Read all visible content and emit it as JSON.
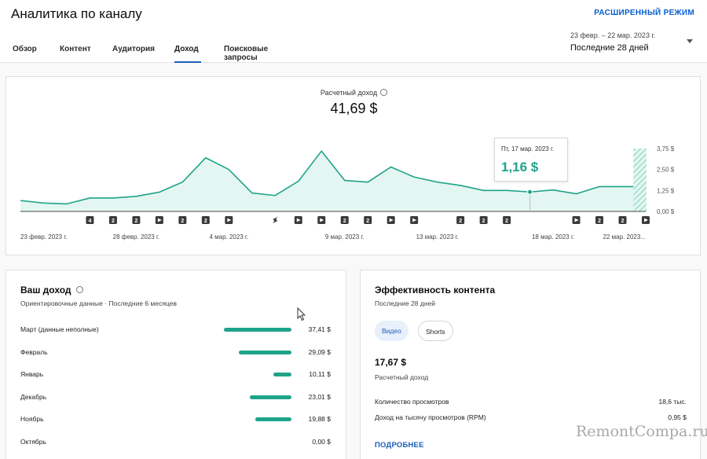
{
  "header": {
    "title": "Аналитика по каналу",
    "advanced_mode": "РАСШИРЕННЫЙ РЕЖИМ",
    "date_range_small": "23 февр. – 22 мар. 2023 г.",
    "date_range_label": "Последние 28 дней"
  },
  "tabs": [
    {
      "label": "Обзор",
      "active": false
    },
    {
      "label": "Контент",
      "active": false
    },
    {
      "label": "Аудитория",
      "active": false
    },
    {
      "label": "Доход",
      "active": true
    },
    {
      "label": "Поисковые запросы",
      "active": false
    }
  ],
  "metric": {
    "label": "Расчетный доход",
    "value": "41,69 $"
  },
  "tooltip": {
    "date": "Пт, 17 мар. 2023 г.",
    "value": "1,16 $"
  },
  "colors": {
    "accent": "#1fa38a",
    "area_fill": "#e4f6f1",
    "link": "#065fd4",
    "tab_underline": "#1a5fb4"
  },
  "chart_data": {
    "type": "area",
    "x": [
      "23 февр.",
      "24 февр.",
      "25 февр.",
      "26 февр.",
      "27 февр.",
      "28 февр.",
      "1 мар.",
      "2 мар.",
      "3 мар.",
      "4 мар.",
      "5 мар.",
      "6 мар.",
      "7 мар.",
      "8 мар.",
      "9 мар.",
      "10 мар.",
      "11 мар.",
      "12 мар.",
      "13 мар.",
      "14 мар.",
      "15 мар.",
      "16 мар.",
      "17 мар.",
      "18 мар.",
      "19 мар.",
      "20 мар.",
      "21 мар.",
      "22 мар."
    ],
    "y": [
      0.65,
      0.5,
      0.45,
      0.8,
      0.8,
      0.9,
      1.15,
      1.75,
      3.2,
      2.5,
      1.1,
      0.95,
      1.8,
      3.6,
      1.85,
      1.75,
      2.65,
      2.05,
      1.75,
      1.55,
      1.25,
      1.25,
      1.16,
      1.28,
      1.05,
      1.48,
      1.48,
      null
    ],
    "partial_last_day": true,
    "x_tick_labels": [
      "23 февр. 2023 г.",
      "28 февр. 2023 г.",
      "4 мар. 2023 г.",
      "9 мар. 2023 г.",
      "13 мар. 2023 г.",
      "18 мар. 2023 г.",
      "22 мар. 2023..."
    ],
    "x_tick_index": [
      0,
      5,
      9,
      14,
      18,
      23,
      27
    ],
    "y_ticks": [
      0,
      1.25,
      2.5,
      3.75
    ],
    "y_tick_labels": [
      "0,00 $",
      "1,25 $",
      "2,50 $",
      "3,75 $"
    ],
    "ylim": [
      0,
      3.75
    ],
    "highlight_index": 22,
    "grid": false,
    "markers": [
      {
        "day": 3,
        "type": "count",
        "text": "4"
      },
      {
        "day": 4,
        "type": "count",
        "text": "2"
      },
      {
        "day": 5,
        "type": "count",
        "text": "2"
      },
      {
        "day": 6,
        "type": "play",
        "text": ""
      },
      {
        "day": 7,
        "type": "count",
        "text": "2"
      },
      {
        "day": 8,
        "type": "count",
        "text": "2"
      },
      {
        "day": 9,
        "type": "play",
        "text": ""
      },
      {
        "day": 11,
        "type": "short",
        "text": ""
      },
      {
        "day": 12,
        "type": "play",
        "text": ""
      },
      {
        "day": 13,
        "type": "play",
        "text": ""
      },
      {
        "day": 14,
        "type": "count",
        "text": "2"
      },
      {
        "day": 15,
        "type": "count",
        "text": "2"
      },
      {
        "day": 16,
        "type": "play",
        "text": ""
      },
      {
        "day": 17,
        "type": "play",
        "text": ""
      },
      {
        "day": 19,
        "type": "count",
        "text": "2"
      },
      {
        "day": 20,
        "type": "count",
        "text": "2"
      },
      {
        "day": 21,
        "type": "count",
        "text": "2"
      },
      {
        "day": 24,
        "type": "play",
        "text": ""
      },
      {
        "day": 25,
        "type": "count",
        "text": "2"
      },
      {
        "day": 26,
        "type": "count",
        "text": "2"
      },
      {
        "day": 27,
        "type": "play",
        "text": ""
      }
    ]
  },
  "income": {
    "title": "Ваш доход",
    "subtitle": "Ориентировочные данные · Последние 6 месяцев",
    "rows": [
      {
        "month": "Март (данные неполные)",
        "value": "37,41 $",
        "amount": 37.41
      },
      {
        "month": "Февраль",
        "value": "29,09 $",
        "amount": 29.09
      },
      {
        "month": "Январь",
        "value": "10,11 $",
        "amount": 10.11
      },
      {
        "month": "Декабрь",
        "value": "23,01 $",
        "amount": 23.01
      },
      {
        "month": "Ноябрь",
        "value": "19,88 $",
        "amount": 19.88
      },
      {
        "month": "Октябрь",
        "value": "0,00 $",
        "amount": 0
      }
    ]
  },
  "performance": {
    "title": "Эффективность контента",
    "subtitle": "Последние 28 дней",
    "chips": [
      "Видео",
      "Shorts"
    ],
    "amount": "17,67 $",
    "amount_label": "Расчетный доход",
    "rows": [
      {
        "label": "Количество просмотров",
        "value": "18,6 тыс."
      },
      {
        "label": "Доход на тысячу просмотров (RPM)",
        "value": "0,95 $"
      }
    ],
    "more": "ПОДРОБНЕЕ"
  },
  "watermark": "RemontCompa.ru"
}
